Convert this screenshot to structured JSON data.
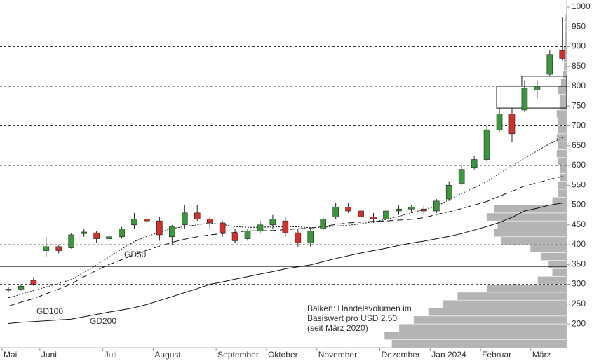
{
  "chart_data": {
    "type": "candlestick",
    "categories": [
      "Mai",
      null,
      null,
      "Juni",
      null,
      null,
      null,
      null,
      "Juli",
      null,
      null,
      null,
      "August",
      null,
      null,
      null,
      null,
      "September",
      null,
      null,
      null,
      "Oktober",
      null,
      null,
      null,
      "November",
      null,
      null,
      null,
      null,
      "Dezember",
      null,
      null,
      null,
      "Jan 2024",
      null,
      null,
      null,
      "Februar",
      null,
      null,
      null,
      "März",
      null,
      null
    ],
    "open": [
      285,
      288,
      310,
      385,
      395,
      392,
      428,
      430,
      415,
      420,
      450,
      465,
      460,
      420,
      450,
      480,
      465,
      455,
      430,
      415,
      435,
      450,
      460,
      430,
      405,
      440,
      470,
      495,
      485,
      470,
      465,
      485,
      490,
      490,
      485,
      515,
      555,
      595,
      615,
      690,
      730,
      740,
      790,
      830,
      890
    ],
    "high": [
      292,
      300,
      318,
      420,
      400,
      430,
      440,
      435,
      430,
      445,
      480,
      475,
      470,
      450,
      500,
      500,
      470,
      460,
      440,
      440,
      460,
      475,
      470,
      440,
      440,
      470,
      505,
      505,
      490,
      480,
      490,
      500,
      500,
      500,
      515,
      560,
      600,
      625,
      700,
      745,
      745,
      815,
      815,
      890,
      975
    ],
    "low": [
      280,
      284,
      296,
      370,
      378,
      390,
      420,
      405,
      405,
      415,
      440,
      450,
      410,
      400,
      440,
      460,
      440,
      420,
      405,
      410,
      430,
      440,
      420,
      395,
      395,
      435,
      465,
      480,
      465,
      455,
      460,
      475,
      480,
      475,
      480,
      510,
      550,
      590,
      610,
      685,
      660,
      735,
      770,
      825,
      865
    ],
    "close": [
      288,
      295,
      300,
      395,
      385,
      425,
      432,
      415,
      420,
      440,
      465,
      460,
      425,
      445,
      480,
      465,
      455,
      430,
      410,
      435,
      450,
      465,
      430,
      405,
      435,
      465,
      495,
      485,
      470,
      465,
      485,
      490,
      495,
      485,
      510,
      550,
      590,
      615,
      690,
      730,
      680,
      795,
      800,
      880,
      870
    ],
    "colors": {
      "up": "#3c963c",
      "down": "#d0312d",
      "wick": "#222"
    },
    "ylim": [
      140,
      1015
    ],
    "yticks": [
      200,
      250,
      300,
      350,
      400,
      450,
      500,
      550,
      600,
      650,
      700,
      750,
      800,
      850,
      900,
      950,
      1000
    ],
    "grid_lines": [
      300,
      400,
      500,
      600,
      700,
      800,
      900
    ],
    "hline": 345,
    "zones": [
      {
        "start": 39,
        "low": 745,
        "high": 800
      },
      {
        "start": 41,
        "low": 800,
        "high": 825
      }
    ],
    "moving_averages": [
      {
        "name": "GD50",
        "style": "dotted",
        "values": [
          266,
          275,
          284,
          293,
          302,
          312,
          330,
          349,
          369,
          389,
          408,
          421,
          431,
          441,
          446,
          450,
          455,
          451,
          446,
          444,
          444,
          445,
          446,
          445,
          443,
          444,
          447,
          449,
          453,
          458,
          464,
          471,
          480,
          489,
          497,
          513,
          529,
          544,
          559,
          580,
          599,
          618,
          637,
          655,
          670
        ]
      },
      {
        "name": "GD100",
        "style": "dashed",
        "values": [
          245,
          255,
          264,
          276,
          288,
          301,
          319,
          335,
          350,
          362,
          375,
          386,
          396,
          406,
          414,
          420,
          425,
          428,
          431,
          435,
          435,
          436,
          438,
          440,
          442,
          446,
          451,
          455,
          457,
          459,
          460,
          462,
          464,
          468,
          476,
          483,
          491,
          500,
          509,
          522,
          535,
          548,
          556,
          565,
          572
        ]
      },
      {
        "name": "GD200",
        "style": "solid",
        "values": [
          201,
          204,
          206,
          208,
          210,
          212,
          218,
          224,
          230,
          235,
          241,
          249,
          259,
          269,
          279,
          289,
          300,
          306,
          313,
          319,
          326,
          332,
          339,
          344,
          349,
          357,
          365,
          372,
          379,
          385,
          391,
          398,
          404,
          409,
          415,
          421,
          428,
          437,
          446,
          456,
          469,
          485,
          492,
          500,
          505
        ]
      }
    ],
    "volume_profile": {
      "bins": [
        140,
        160,
        180,
        200,
        220,
        240,
        260,
        280,
        300,
        320,
        340,
        360,
        380,
        400,
        420,
        440,
        460,
        480,
        500,
        520,
        540,
        560,
        580,
        600,
        620,
        640,
        660,
        680,
        700,
        720,
        740,
        760,
        780,
        800,
        820,
        840,
        860,
        880,
        900,
        920,
        940,
        960,
        980,
        1000
      ],
      "values": [
        240,
        250,
        230,
        210,
        190,
        170,
        150,
        110,
        40,
        20,
        25,
        35,
        50,
        90,
        100,
        95,
        110,
        100,
        20,
        12,
        12,
        10,
        10,
        12,
        14,
        12,
        14,
        12,
        12,
        14,
        10,
        10,
        12,
        8,
        6,
        4,
        4,
        4,
        3,
        3,
        2,
        2,
        1
      ],
      "color": "#b4b4b4"
    },
    "annotation": [
      "Balken: Handelsvolumen im",
      "Basiswert pro USD 2.50",
      "(seit März 2020)"
    ]
  }
}
